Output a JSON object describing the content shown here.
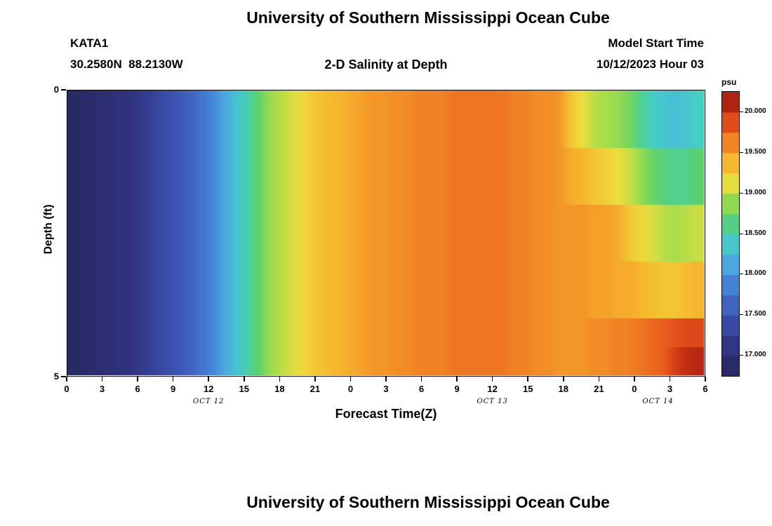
{
  "page": {
    "title_top": "University of Southern Mississippi Ocean Cube",
    "title_bottom": "University of Southern Mississippi Ocean Cube"
  },
  "header": {
    "station": "KATA1",
    "coordinates": "30.2580N  88.2130W",
    "plot_title": "2-D Salinity at Depth",
    "model_start_label": "Model Start Time",
    "model_start_value": "10/12/2023 Hour 03"
  },
  "chart_data": {
    "type": "heatmap",
    "title": "2-D Salinity at Depth",
    "xlabel": "Forecast Time(Z)",
    "ylabel": "Depth (ft)",
    "colorbar_label": "psu",
    "x_range_hours": [
      0,
      54
    ],
    "time_step_hours": 1,
    "x_tick_hours": [
      0,
      3,
      6,
      9,
      12,
      15,
      18,
      21,
      24,
      27,
      30,
      33,
      36,
      39,
      42,
      45,
      48,
      51,
      54
    ],
    "x_tick_labels": [
      "0",
      "3",
      "6",
      "9",
      "12",
      "15",
      "18",
      "21",
      "0",
      "3",
      "6",
      "9",
      "12",
      "15",
      "18",
      "21",
      "0",
      "3",
      "6"
    ],
    "date_labels": [
      {
        "text": "OCT 12",
        "hour": 12
      },
      {
        "text": "OCT 13",
        "hour": 36
      },
      {
        "text": "OCT 14",
        "hour": 50
      }
    ],
    "y_ticks": [
      {
        "label": "0",
        "depth": 0
      },
      {
        "label": "5",
        "depth": 5
      }
    ],
    "depth_range_ft": [
      0,
      5
    ],
    "depth_rows_ft": [
      0.25,
      0.75,
      1.25,
      1.75,
      2.25,
      2.75,
      3.25,
      3.75,
      4.25,
      4.75
    ],
    "value_range": [
      16.75,
      20.25
    ],
    "colorbar_ticks": [
      {
        "label": "20.000",
        "value": 20.0
      },
      {
        "label": "19.500",
        "value": 19.5
      },
      {
        "label": "19.000",
        "value": 19.0
      },
      {
        "label": "18.500",
        "value": 18.5
      },
      {
        "label": "18.000",
        "value": 18.0
      },
      {
        "label": "17.500",
        "value": 17.5
      },
      {
        "label": "17.000",
        "value": 17.0
      }
    ],
    "colorbar_segment_step": 0.25,
    "colormap_stops": [
      [
        16.75,
        "#262559"
      ],
      [
        17.1,
        "#30337f"
      ],
      [
        17.5,
        "#3c55b4"
      ],
      [
        17.9,
        "#4585d8"
      ],
      [
        18.2,
        "#4cb4e0"
      ],
      [
        18.45,
        "#45cfc3"
      ],
      [
        18.7,
        "#5bd169"
      ],
      [
        18.95,
        "#a8dc4a"
      ],
      [
        19.15,
        "#eede3e"
      ],
      [
        19.4,
        "#f6b52e"
      ],
      [
        19.6,
        "#f28c26"
      ],
      [
        19.8,
        "#e95e1e"
      ],
      [
        20.0,
        "#cf3414"
      ],
      [
        20.25,
        "#8e130e"
      ]
    ],
    "values": [
      [
        16.85,
        16.9,
        16.95,
        17,
        17.05,
        17.1,
        17.2,
        17.3,
        17.4,
        17.5,
        17.6,
        17.75,
        17.9,
        18.1,
        18.3,
        18.5,
        18.7,
        18.9,
        19,
        19.1,
        19.2,
        19.3,
        19.35,
        19.4,
        19.45,
        19.5,
        19.55,
        19.55,
        19.6,
        19.6,
        19.65,
        19.65,
        19.65,
        19.7,
        19.7,
        19.7,
        19.7,
        19.7,
        19.65,
        19.65,
        19.6,
        19.6,
        19.55,
        19.3,
        19.15,
        19,
        18.95,
        18.9,
        18.8,
        18.6,
        18.45,
        18.35,
        18.3,
        18.35,
        18.45
      ],
      [
        16.85,
        16.9,
        16.95,
        17,
        17.05,
        17.1,
        17.2,
        17.3,
        17.4,
        17.5,
        17.6,
        17.75,
        17.9,
        18.1,
        18.3,
        18.5,
        18.7,
        18.9,
        19,
        19.1,
        19.2,
        19.3,
        19.35,
        19.4,
        19.45,
        19.5,
        19.55,
        19.55,
        19.6,
        19.6,
        19.65,
        19.65,
        19.65,
        19.7,
        19.7,
        19.7,
        19.7,
        19.7,
        19.65,
        19.65,
        19.6,
        19.6,
        19.55,
        19.3,
        19.15,
        19,
        18.95,
        18.9,
        18.8,
        18.6,
        18.45,
        18.35,
        18.3,
        18.35,
        18.45
      ],
      [
        16.85,
        16.9,
        16.95,
        17,
        17.05,
        17.1,
        17.2,
        17.3,
        17.4,
        17.5,
        17.6,
        17.75,
        17.9,
        18.1,
        18.3,
        18.5,
        18.7,
        18.9,
        19,
        19.1,
        19.2,
        19.3,
        19.35,
        19.4,
        19.45,
        19.5,
        19.55,
        19.55,
        19.6,
        19.6,
        19.65,
        19.65,
        19.65,
        19.7,
        19.7,
        19.7,
        19.7,
        19.7,
        19.65,
        19.65,
        19.6,
        19.6,
        19.55,
        19.45,
        19.4,
        19.3,
        19.25,
        19.15,
        19.05,
        18.9,
        18.75,
        18.65,
        18.6,
        18.6,
        18.7
      ],
      [
        16.85,
        16.9,
        16.95,
        17,
        17.05,
        17.1,
        17.2,
        17.3,
        17.4,
        17.5,
        17.6,
        17.75,
        17.9,
        18.1,
        18.3,
        18.5,
        18.7,
        18.9,
        19,
        19.1,
        19.2,
        19.3,
        19.35,
        19.4,
        19.45,
        19.5,
        19.55,
        19.55,
        19.6,
        19.6,
        19.65,
        19.65,
        19.65,
        19.7,
        19.7,
        19.7,
        19.7,
        19.7,
        19.65,
        19.65,
        19.6,
        19.6,
        19.55,
        19.45,
        19.4,
        19.3,
        19.25,
        19.15,
        19.05,
        18.9,
        18.75,
        18.65,
        18.6,
        18.6,
        18.7
      ],
      [
        16.85,
        16.9,
        16.95,
        17,
        17.05,
        17.1,
        17.2,
        17.3,
        17.4,
        17.5,
        17.6,
        17.75,
        17.9,
        18.1,
        18.3,
        18.5,
        18.7,
        18.9,
        19,
        19.1,
        19.2,
        19.3,
        19.35,
        19.4,
        19.45,
        19.5,
        19.55,
        19.55,
        19.6,
        19.6,
        19.65,
        19.65,
        19.65,
        19.7,
        19.7,
        19.7,
        19.7,
        19.7,
        19.65,
        19.65,
        19.6,
        19.6,
        19.55,
        19.55,
        19.55,
        19.5,
        19.5,
        19.45,
        19.3,
        19.2,
        19.1,
        19,
        18.95,
        19,
        19.05
      ],
      [
        16.85,
        16.9,
        16.95,
        17,
        17.05,
        17.1,
        17.2,
        17.3,
        17.4,
        17.5,
        17.6,
        17.75,
        17.9,
        18.1,
        18.3,
        18.5,
        18.7,
        18.9,
        19,
        19.1,
        19.2,
        19.3,
        19.35,
        19.4,
        19.45,
        19.5,
        19.55,
        19.55,
        19.6,
        19.6,
        19.65,
        19.65,
        19.65,
        19.7,
        19.7,
        19.7,
        19.7,
        19.7,
        19.65,
        19.65,
        19.6,
        19.6,
        19.55,
        19.55,
        19.55,
        19.5,
        19.5,
        19.45,
        19.3,
        19.2,
        19.1,
        19,
        18.95,
        19,
        19.05
      ],
      [
        16.85,
        16.9,
        16.95,
        17,
        17.05,
        17.1,
        17.2,
        17.3,
        17.4,
        17.5,
        17.6,
        17.75,
        17.9,
        18.1,
        18.3,
        18.5,
        18.7,
        18.9,
        19,
        19.1,
        19.2,
        19.3,
        19.35,
        19.4,
        19.45,
        19.5,
        19.55,
        19.55,
        19.6,
        19.6,
        19.65,
        19.65,
        19.65,
        19.7,
        19.7,
        19.7,
        19.7,
        19.7,
        19.65,
        19.65,
        19.6,
        19.6,
        19.55,
        19.55,
        19.55,
        19.5,
        19.5,
        19.45,
        19.45,
        19.4,
        19.35,
        19.3,
        19.3,
        19.35,
        19.4
      ],
      [
        16.85,
        16.9,
        16.95,
        17,
        17.05,
        17.1,
        17.2,
        17.3,
        17.4,
        17.5,
        17.6,
        17.75,
        17.9,
        18.1,
        18.3,
        18.5,
        18.7,
        18.9,
        19,
        19.1,
        19.2,
        19.3,
        19.35,
        19.4,
        19.45,
        19.5,
        19.55,
        19.55,
        19.6,
        19.6,
        19.65,
        19.65,
        19.65,
        19.7,
        19.7,
        19.7,
        19.7,
        19.7,
        19.65,
        19.65,
        19.6,
        19.6,
        19.55,
        19.55,
        19.55,
        19.5,
        19.5,
        19.45,
        19.45,
        19.4,
        19.35,
        19.3,
        19.3,
        19.35,
        19.4
      ],
      [
        16.85,
        16.9,
        16.95,
        17,
        17.05,
        17.1,
        17.2,
        17.3,
        17.4,
        17.5,
        17.6,
        17.75,
        17.9,
        18.1,
        18.3,
        18.5,
        18.7,
        18.9,
        19,
        19.1,
        19.2,
        19.3,
        19.35,
        19.4,
        19.45,
        19.5,
        19.55,
        19.55,
        19.6,
        19.6,
        19.65,
        19.65,
        19.65,
        19.7,
        19.7,
        19.7,
        19.7,
        19.7,
        19.65,
        19.65,
        19.6,
        19.6,
        19.55,
        19.55,
        19.55,
        19.6,
        19.6,
        19.65,
        19.65,
        19.7,
        19.75,
        19.8,
        19.85,
        19.9,
        19.9
      ],
      [
        16.85,
        16.9,
        16.95,
        17,
        17.05,
        17.1,
        17.2,
        17.3,
        17.4,
        17.5,
        17.6,
        17.75,
        17.9,
        18.1,
        18.3,
        18.5,
        18.7,
        18.9,
        19,
        19.1,
        19.2,
        19.3,
        19.35,
        19.4,
        19.45,
        19.5,
        19.55,
        19.55,
        19.6,
        19.6,
        19.65,
        19.65,
        19.65,
        19.7,
        19.7,
        19.7,
        19.7,
        19.7,
        19.65,
        19.65,
        19.6,
        19.6,
        19.55,
        19.55,
        19.55,
        19.6,
        19.6,
        19.65,
        19.65,
        19.7,
        19.75,
        19.8,
        19.95,
        20.05,
        20.1
      ]
    ]
  }
}
